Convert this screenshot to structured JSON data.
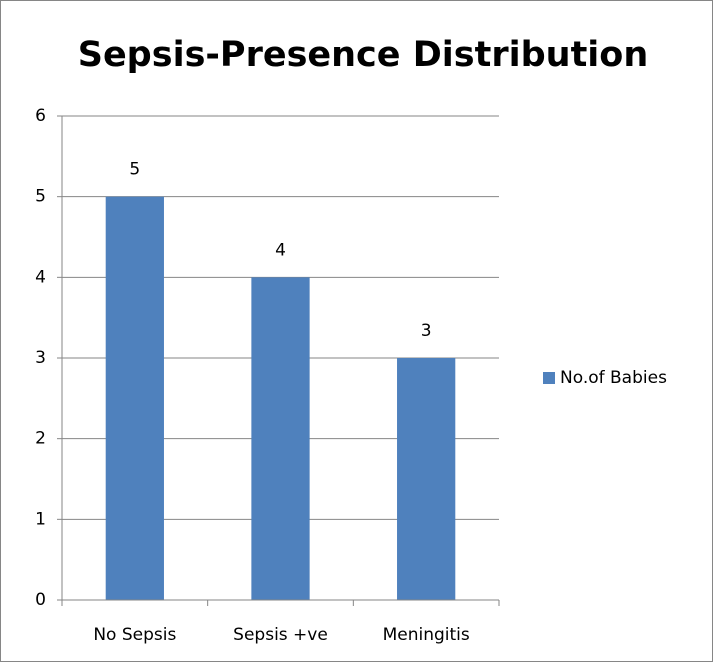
{
  "chart_data": {
    "type": "bar",
    "title": "Sepsis-Presence Distribution",
    "categories": [
      "No Sepsis",
      "Sepsis +ve",
      "Meningitis"
    ],
    "series": [
      {
        "name": "No.of Babies",
        "color": "#4f81bd",
        "values": [
          5,
          4,
          3
        ]
      }
    ],
    "ylim": [
      0,
      6
    ],
    "yticks": [
      0,
      1,
      2,
      3,
      4,
      5,
      6
    ],
    "grid": true,
    "legend": "right",
    "data_labels": true
  }
}
